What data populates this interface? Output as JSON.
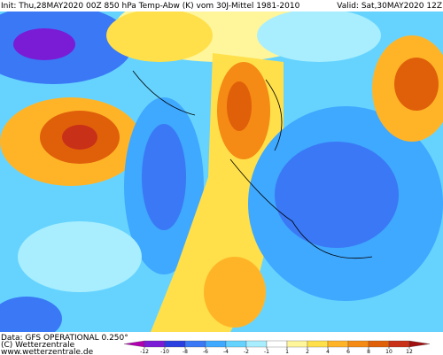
{
  "header": {
    "init": "Init: Thu,28MAY2020 00Z 850 hPa Temp-Abw (K) vom 30J-Mittel 1981-2010",
    "valid": "Valid: Sat,30MAY2020 12Z"
  },
  "footer": {
    "data": "Data: GFS OPERATIONAL 0.250°",
    "copyright": "(C) Wetterzentrale",
    "url": "www.wetterzentrale.de"
  },
  "colorbar": {
    "ticks": [
      -12,
      -10,
      -8,
      -6,
      -4,
      -2,
      -1,
      1,
      2,
      4,
      6,
      8,
      10,
      12
    ],
    "colors": [
      "#b000b0",
      "#7a1cd6",
      "#2a3fe0",
      "#3a78f5",
      "#3fa8ff",
      "#66d3ff",
      "#a8eeff",
      "#ffffff",
      "#fff59a",
      "#ffe04a",
      "#ffb428",
      "#f58a14",
      "#e0600a",
      "#c83018",
      "#a01010"
    ]
  }
}
